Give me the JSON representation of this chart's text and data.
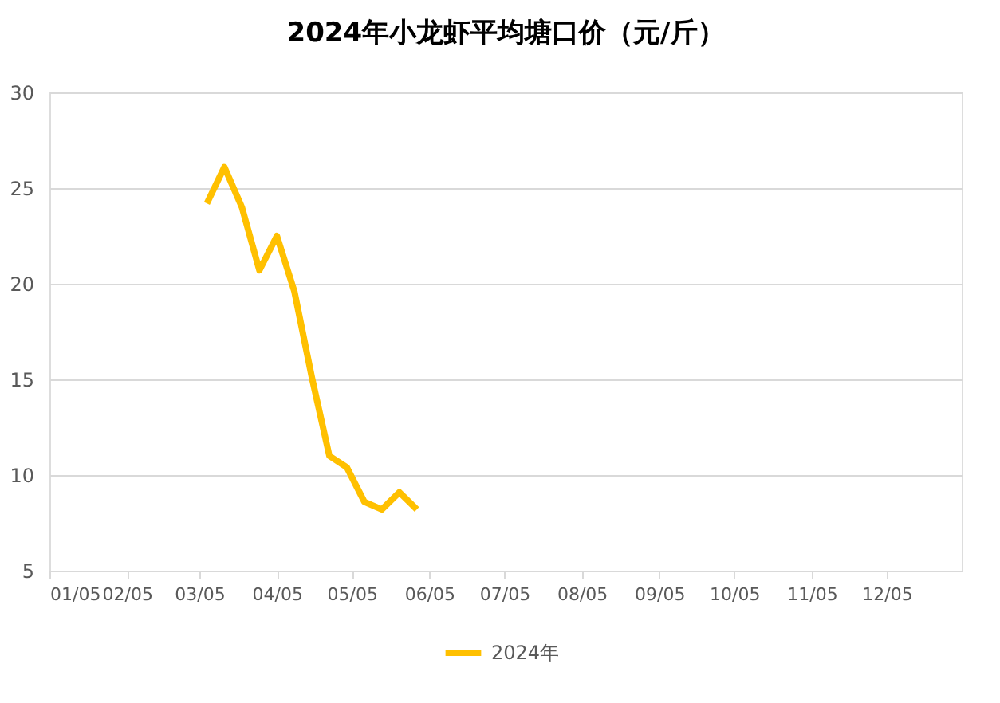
{
  "chart_data": {
    "type": "line",
    "title": "2024年小龙虾平均塘口价（元/斤）",
    "x": [
      "2024-03-08",
      "2024-03-15",
      "2024-03-22",
      "2024-03-29",
      "2024-04-05",
      "2024-04-12",
      "2024-04-19",
      "2024-04-26",
      "2024-05-03",
      "2024-05-10",
      "2024-05-17",
      "2024-05-24",
      "2024-05-31"
    ],
    "series": [
      {
        "name": "2024年",
        "color": "#ffc000",
        "values": [
          24.2,
          26.1,
          24.0,
          20.7,
          22.5,
          19.6,
          15.1,
          11.0,
          10.4,
          8.6,
          8.2,
          9.1,
          8.2
        ]
      }
    ],
    "xlim": [
      "2024-01-05",
      "2025-01-04"
    ],
    "xticks": [
      {
        "value": "2024-01-05",
        "label": "01/05"
      },
      {
        "value": "2024-02-05",
        "label": "02/05"
      },
      {
        "value": "2024-03-05",
        "label": "03/05"
      },
      {
        "value": "2024-04-05",
        "label": "04/05"
      },
      {
        "value": "2024-05-05",
        "label": "05/05"
      },
      {
        "value": "2024-06-05",
        "label": "06/05"
      },
      {
        "value": "2024-07-05",
        "label": "07/05"
      },
      {
        "value": "2024-08-05",
        "label": "08/05"
      },
      {
        "value": "2024-09-05",
        "label": "09/05"
      },
      {
        "value": "2024-10-05",
        "label": "10/05"
      },
      {
        "value": "2024-11-05",
        "label": "11/05"
      },
      {
        "value": "2024-12-05",
        "label": "12/05"
      }
    ],
    "ylim": [
      5,
      30
    ],
    "yticks": [
      5,
      10,
      15,
      20,
      25,
      30
    ],
    "grid": "y",
    "legend": "bottom",
    "marker": "none",
    "line_style": "solid"
  }
}
